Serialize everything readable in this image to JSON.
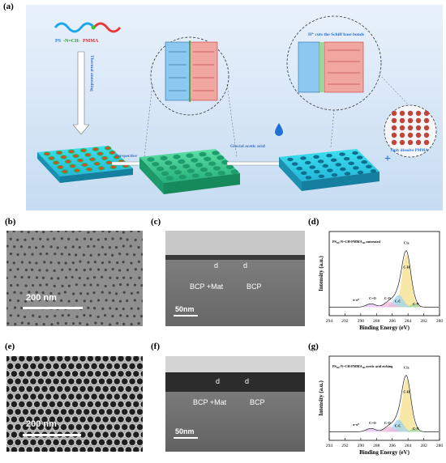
{
  "labels": {
    "a": "(a)",
    "b": "(b)",
    "c": "(c)",
    "d": "(d)",
    "e": "(e)",
    "f": "(f)",
    "g": "(g)"
  },
  "schematic": {
    "polymer_ps": "PS",
    "polymer_link": "-N=CH-",
    "polymer_pmma": "PMMA",
    "step_thermal": "Thermal annealing",
    "step_perspective": "Perspective",
    "step_acid": "Glacial acetic acid",
    "h_cut": "H⁺ cuts the Schiff base bonds",
    "only_dissolve": "Only dissolve PMMA",
    "plus": "+"
  },
  "sem_b": {
    "scalebar": "200 nm"
  },
  "sem_e": {
    "scalebar": "200 nm"
  },
  "tem_c": {
    "scalebar": "50nm",
    "label_mat": "BCP +Mat",
    "label_bcp": "BCP",
    "d1": "d",
    "d2": "d"
  },
  "tem_f": {
    "scalebar": "50nm",
    "label_mat": "BCP +Mat",
    "label_bcp": "BCP",
    "d1": "d",
    "d2": "d"
  },
  "xps_d": {
    "legend": "PS₁₀₀-N=CH-PMMA₁₀₀ untreated",
    "ylabel": "Intensity (a.u.)",
    "xlabel": "Binding Energy (eV)",
    "ticks": [
      "294",
      "292",
      "290",
      "288",
      "286",
      "284",
      "282",
      "280"
    ],
    "peaks": [
      "C1s",
      "C-H",
      "C=O",
      "C-O",
      "C-C",
      "π-π*",
      "C-N"
    ]
  },
  "xps_g": {
    "legend": "PS₁₀₀-N=CH-PMMA₁₀₀ acetic acid etching",
    "ylabel": "Intensity (a.u.)",
    "xlabel": "Binding Energy (eV)",
    "ticks": [
      "294",
      "292",
      "290",
      "288",
      "286",
      "284",
      "282",
      "280"
    ],
    "peaks": [
      "C1s",
      "C-H",
      "C=O",
      "C-O",
      "C-C",
      "π-π*",
      "C-N"
    ]
  },
  "chart_data": [
    {
      "type": "line",
      "xlabel": "Binding Energy (eV)",
      "ylabel": "Intensity (a.u.)",
      "xlim": [
        294,
        280
      ],
      "series": [
        {
          "name": "PS₁₀₀-N=CH-PMMA₁₀₀ untreated",
          "x": [
            294,
            292,
            290,
            288.5,
            286.5,
            285,
            284.5,
            284.2,
            283.8,
            283,
            282,
            280
          ],
          "y": [
            0.04,
            0.06,
            0.09,
            0.11,
            0.16,
            0.55,
            0.92,
            1.0,
            0.8,
            0.18,
            0.05,
            0.03
          ]
        }
      ]
    },
    {
      "type": "line",
      "xlabel": "Binding Energy (eV)",
      "ylabel": "Intensity (a.u.)",
      "xlim": [
        294,
        280
      ],
      "series": [
        {
          "name": "PS₁₀₀-N=CH-PMMA₁₀₀ acetic acid etching",
          "x": [
            294,
            292,
            290,
            288.5,
            286.5,
            285,
            284.5,
            284.2,
            283.8,
            283,
            282,
            280
          ],
          "y": [
            0.03,
            0.05,
            0.06,
            0.07,
            0.12,
            0.5,
            0.93,
            1.0,
            0.78,
            0.15,
            0.04,
            0.02
          ]
        }
      ]
    }
  ]
}
